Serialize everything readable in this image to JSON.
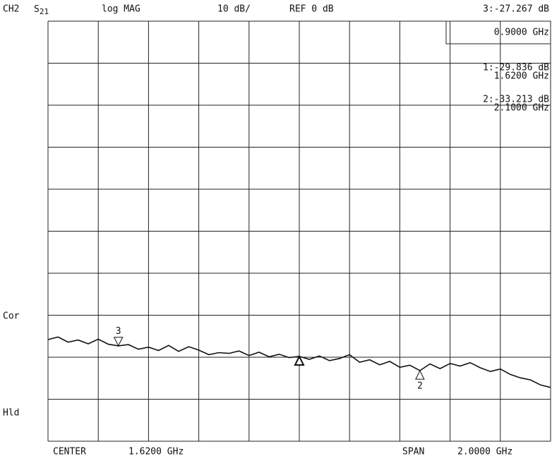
{
  "chart_data": {
    "type": "line",
    "channel": "CH2",
    "parameter": {
      "name": "S",
      "subscript": "21"
    },
    "format": "log MAG",
    "scale": "10 dB/",
    "reference": "REF 0 dB",
    "status": [
      "Cor",
      "Hld"
    ],
    "center_label": "CENTER",
    "center_value": "1.6200 GHz",
    "span_label": "SPAN",
    "span_value": "2.0000 GHz",
    "x": [
      0.62,
      0.66,
      0.7,
      0.74,
      0.78,
      0.82,
      0.86,
      0.9,
      0.94,
      0.98,
      1.02,
      1.06,
      1.1,
      1.14,
      1.18,
      1.22,
      1.26,
      1.3,
      1.34,
      1.38,
      1.42,
      1.46,
      1.5,
      1.54,
      1.58,
      1.62,
      1.66,
      1.7,
      1.74,
      1.78,
      1.82,
      1.86,
      1.9,
      1.94,
      1.98,
      2.02,
      2.06,
      2.1,
      2.14,
      2.18,
      2.22,
      2.26,
      2.3,
      2.34,
      2.38,
      2.42,
      2.46,
      2.5,
      2.54,
      2.58,
      2.62
    ],
    "series": [
      {
        "color": "#111111",
        "values": [
          -25.8,
          -25.2,
          -26.4,
          -25.9,
          -26.8,
          -25.7,
          -26.9,
          -27.3,
          -27.0,
          -28.1,
          -27.6,
          -28.4,
          -27.2,
          -28.6,
          -27.5,
          -28.3,
          -29.4,
          -28.9,
          -29.1,
          -28.5,
          -29.6,
          -28.8,
          -29.9,
          -29.3,
          -30.1,
          -29.8,
          -30.5,
          -29.7,
          -30.8,
          -30.3,
          -29.4,
          -31.2,
          -30.6,
          -31.8,
          -31.0,
          -32.4,
          -31.9,
          -33.2,
          -31.6,
          -32.7,
          -31.5,
          -32.1,
          -31.3,
          -32.5,
          -33.4,
          -32.8,
          -34.1,
          -34.9,
          -35.4,
          -36.6,
          -37.2
        ]
      }
    ],
    "markers": [
      {
        "name": "3",
        "x": 0.9,
        "value": -27.267,
        "readout": "3:-27.267 dB",
        "x_label": "0.9000 GHz",
        "label_side": "above"
      },
      {
        "name": "1",
        "x": 1.62,
        "value": -29.836,
        "readout": "1:-29.836 dB",
        "x_label": "1.6200 GHz",
        "label_side": "none"
      },
      {
        "name": "2",
        "x": 2.1,
        "value": -33.213,
        "readout": "2:-33.213 dB",
        "x_label": "2.1000 GHz",
        "label_side": "below"
      }
    ],
    "xlim": [
      0.62,
      2.62
    ],
    "xticks": [
      0.62,
      0.82,
      1.02,
      1.22,
      1.42,
      1.62,
      1.82,
      2.02,
      2.22,
      2.42,
      2.62
    ],
    "ylim": [
      -50,
      50
    ],
    "yticks": [
      -50,
      -40,
      -30,
      -20,
      -10,
      0,
      10,
      20,
      30,
      40,
      50
    ],
    "grid": true
  }
}
